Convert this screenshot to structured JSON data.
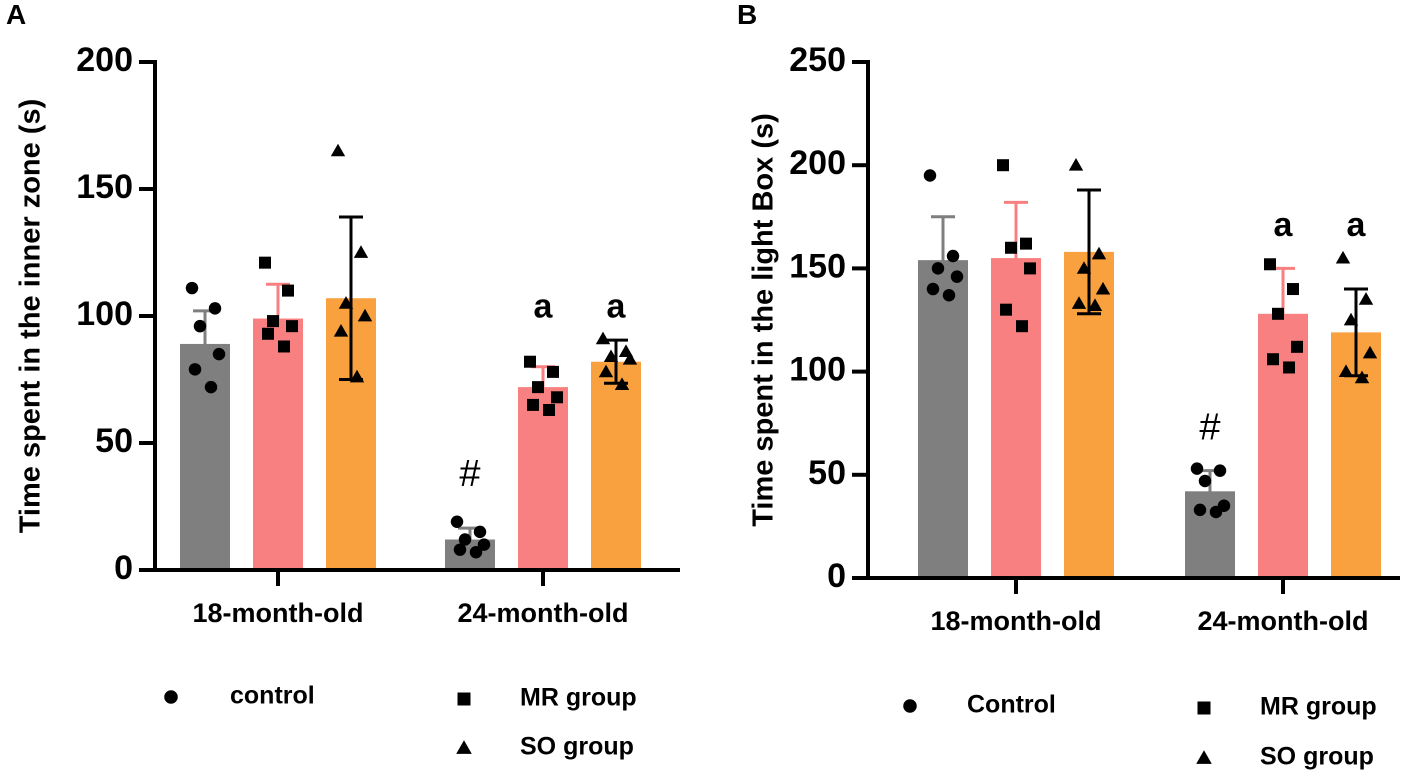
{
  "chart_data": [
    {
      "panel": "A",
      "type": "bar",
      "ylabel": "Time spent in the inner zone (s)",
      "ylim": [
        0,
        200
      ],
      "yticks": [
        0,
        50,
        100,
        150,
        200
      ],
      "categories": [
        "18-month-old",
        "24-month-old"
      ],
      "series": [
        {
          "name": "control",
          "marker": "circle",
          "color": "#7f7f7f",
          "error_color": "#7f7f7f",
          "values": [
            89,
            12
          ],
          "errors": [
            13,
            4.5
          ],
          "points": [
            [
              111,
              103,
              96,
              85,
              79,
              72
            ],
            [
              19,
              15,
              12,
              10,
              8,
              7
            ]
          ]
        },
        {
          "name": "MR group",
          "marker": "square",
          "color": "#f98080",
          "error_color": "#f98080",
          "values": [
            99,
            72
          ],
          "errors": [
            13.5,
            8
          ],
          "points": [
            [
              121,
              110,
              98,
              96,
              93,
              88
            ],
            [
              82,
              78,
              72,
              68,
              65,
              63
            ]
          ]
        },
        {
          "name": "SO group",
          "marker": "triangle",
          "color": "#f9a03f",
          "error_color": "#000000",
          "values": [
            107,
            82
          ],
          "errors": [
            32,
            8.5
          ],
          "points": [
            [
              165,
              125,
              105,
              100,
              94,
              76
            ],
            [
              91,
              86,
              84,
              83,
              78,
              73
            ]
          ]
        }
      ],
      "annotations": [
        {
          "text": "#",
          "category": 1,
          "series": 0,
          "y": 37
        },
        {
          "text": "a",
          "category": 1,
          "series": 1,
          "y": 103
        },
        {
          "text": "a",
          "category": 1,
          "series": 2,
          "y": 103
        }
      ],
      "legend": [
        "control",
        "MR group",
        "SO group"
      ]
    },
    {
      "panel": "B",
      "type": "bar",
      "ylabel": "Time spent in the light Box (s)",
      "ylim": [
        0,
        250
      ],
      "yticks": [
        0,
        50,
        100,
        150,
        200,
        250
      ],
      "categories": [
        "18-month-old",
        "24-month-old"
      ],
      "series": [
        {
          "name": "Control",
          "marker": "circle",
          "color": "#7f7f7f",
          "error_color": "#7f7f7f",
          "values": [
            154,
            42
          ],
          "errors": [
            21,
            10
          ],
          "points": [
            [
              195,
              156,
              150,
              146,
              140,
              137
            ],
            [
              53,
              52,
              47,
              35,
              33,
              32
            ]
          ]
        },
        {
          "name": "MR group",
          "marker": "square",
          "color": "#f98080",
          "error_color": "#f98080",
          "values": [
            155,
            128
          ],
          "errors": [
            27,
            22
          ],
          "points": [
            [
              200,
              162,
              160,
              150,
              130,
              122
            ],
            [
              152,
              140,
              128,
              112,
              106,
              102
            ]
          ]
        },
        {
          "name": "SO group",
          "marker": "triangle",
          "color": "#f9a03f",
          "error_color": "#000000",
          "values": [
            158,
            119
          ],
          "errors": [
            30,
            21
          ],
          "points": [
            [
              200,
              157,
              150,
              140,
              133,
              132
            ],
            [
              155,
              135,
              125,
              109,
              100,
              97
            ]
          ]
        }
      ],
      "annotations": [
        {
          "text": "#",
          "category": 1,
          "series": 0,
          "y": 72
        },
        {
          "text": "a",
          "category": 1,
          "series": 1,
          "y": 170
        },
        {
          "text": "a",
          "category": 1,
          "series": 2,
          "y": 170
        }
      ],
      "legend": [
        "Control",
        "MR group",
        "SO group"
      ]
    }
  ]
}
